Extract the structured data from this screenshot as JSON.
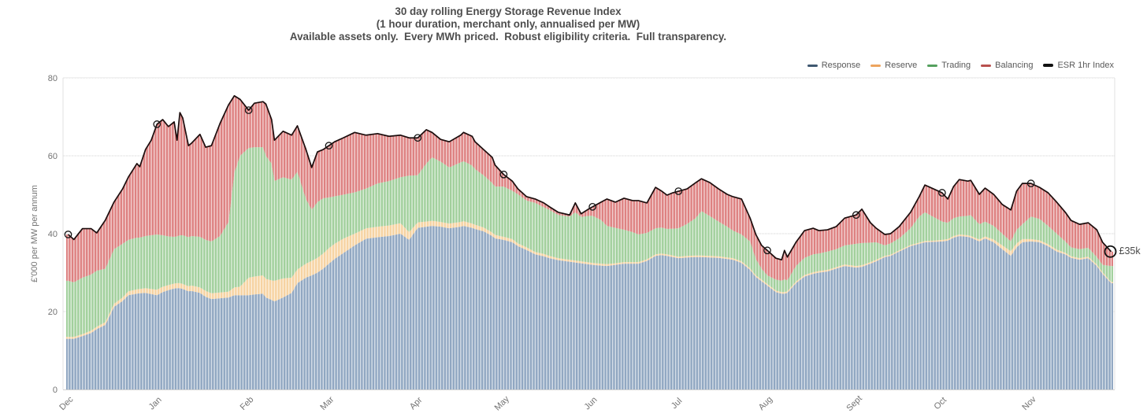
{
  "title": {
    "line1": "30 day rolling Energy Storage Revenue Index",
    "line2": "(1 hour duration, merchant only, annualised per MW)",
    "line3": "Available assets only.  Every MWh priced.  Robust eligibility criteria.  Full transparency."
  },
  "y_axis": {
    "label": "£'000 per MW per annum",
    "ticks": [
      0,
      20,
      40,
      60,
      80
    ],
    "max": 80
  },
  "x_axis": {
    "months": [
      {
        "label": "Dec",
        "day": 0
      },
      {
        "label": "Jan",
        "day": 31
      },
      {
        "label": "Feb",
        "day": 63
      },
      {
        "label": "Mar",
        "day": 91
      },
      {
        "label": "Apr",
        "day": 122
      },
      {
        "label": "May",
        "day": 152
      },
      {
        "label": "Jun",
        "day": 183
      },
      {
        "label": "Jul",
        "day": 213
      },
      {
        "label": "Aug",
        "day": 244
      },
      {
        "label": "Sept",
        "day": 275
      },
      {
        "label": "Oct",
        "day": 305
      },
      {
        "label": "Nov",
        "day": 336
      }
    ]
  },
  "legend": [
    {
      "label": "Response",
      "swatch": "#3f5870",
      "thick": false
    },
    {
      "label": "Reserve",
      "swatch": "#eda45e",
      "thick": false
    },
    {
      "label": "Trading",
      "swatch": "#55a05e",
      "thick": false
    },
    {
      "label": "Balancing",
      "swatch": "#b8504d",
      "thick": false
    },
    {
      "label": "ESR 1hr Index",
      "swatch": "#111111",
      "thick": true
    }
  ],
  "annotation": {
    "text": "£35k"
  },
  "colors": {
    "response_bar": "#8fa6c1",
    "reserve_bar": "#f6d2a0",
    "trading_bar": "#a0cf9b",
    "balancing_bar": "#dd7f7f",
    "esr_line": "#1c0d0d",
    "grid": "#e0e0e0",
    "axis_text": "#737373",
    "title_text": "#4d4d4d"
  },
  "chart_data": {
    "type": "bar",
    "stacked": true,
    "title": "30 day rolling Energy Storage Revenue Index",
    "xlabel": "",
    "ylabel": "£'000 per MW per annum",
    "ylim": [
      0,
      80
    ],
    "grid": true,
    "legend_position": "top-right",
    "x_unit": "days since 1 Dec",
    "x": [
      0,
      2,
      5,
      8,
      10,
      13,
      16,
      19,
      21,
      24,
      25,
      27,
      29,
      31,
      33,
      35,
      37,
      38,
      39,
      40,
      42,
      43,
      46,
      48,
      50,
      53,
      56,
      58,
      60,
      63,
      65,
      68,
      69,
      71,
      72,
      75,
      78,
      80,
      83,
      85,
      87,
      89,
      91,
      93,
      96,
      100,
      104,
      108,
      112,
      116,
      119,
      122,
      125,
      127,
      130,
      133,
      137,
      138,
      141,
      142,
      145,
      148,
      149,
      152,
      155,
      157,
      160,
      163,
      166,
      168,
      171,
      175,
      177,
      179,
      182,
      183,
      186,
      188,
      191,
      194,
      197,
      199,
      202,
      205,
      207,
      209,
      211,
      213,
      216,
      219,
      221,
      224,
      227,
      230,
      232,
      235,
      238,
      240,
      242,
      244,
      247,
      249,
      250,
      251,
      254,
      257,
      260,
      262,
      265,
      268,
      271,
      275,
      277,
      280,
      282,
      285,
      287,
      290,
      294,
      297,
      299,
      302,
      305,
      307,
      309,
      311,
      314,
      315,
      318,
      320,
      323,
      326,
      329,
      331,
      333,
      336,
      339,
      342,
      345,
      348,
      350,
      353,
      356,
      359,
      361,
      364
    ],
    "series": [
      {
        "name": "Response",
        "type": "bar",
        "color": "#8fa6c1",
        "values": [
          13.0,
          13.0,
          13.7,
          14.5,
          15.5,
          16.6,
          21.2,
          22.7,
          24.2,
          24.6,
          24.7,
          24.8,
          24.5,
          24.2,
          25.0,
          25.5,
          25.9,
          26.0,
          26.0,
          25.8,
          25.2,
          25.3,
          24.8,
          23.8,
          23.2,
          23.4,
          23.6,
          24.2,
          24.2,
          24.2,
          24.4,
          24.6,
          23.6,
          23.0,
          22.6,
          23.6,
          24.8,
          27.3,
          28.7,
          29.3,
          30.0,
          31.0,
          32.3,
          33.5,
          35.0,
          37.0,
          38.7,
          39.1,
          39.4,
          40.0,
          38.4,
          41.5,
          41.8,
          42.0,
          41.8,
          41.4,
          41.8,
          42.0,
          41.5,
          41.2,
          40.6,
          39.4,
          38.8,
          38.4,
          37.8,
          36.8,
          35.8,
          34.7,
          34.2,
          33.7,
          33.2,
          32.8,
          32.6,
          32.4,
          32.1,
          32.0,
          31.8,
          31.7,
          32.0,
          32.3,
          32.3,
          32.3,
          33.0,
          34.3,
          34.5,
          34.3,
          34.0,
          33.7,
          33.9,
          34.0,
          34.0,
          33.9,
          33.8,
          33.5,
          33.3,
          32.5,
          30.7,
          28.9,
          27.8,
          26.7,
          25.0,
          24.6,
          24.6,
          24.8,
          27.3,
          29.0,
          29.7,
          30.0,
          30.3,
          31.0,
          31.7,
          31.3,
          31.5,
          32.3,
          32.9,
          34.0,
          34.3,
          35.4,
          36.8,
          37.4,
          37.8,
          37.9,
          38.0,
          38.2,
          39.0,
          39.4,
          39.2,
          39.0,
          38.0,
          38.8,
          37.8,
          36.0,
          34.3,
          36.5,
          37.8,
          38.0,
          37.8,
          36.8,
          35.4,
          34.7,
          33.8,
          33.3,
          33.7,
          31.7,
          29.7,
          27.3
        ]
      },
      {
        "name": "Reserve",
        "type": "bar",
        "color": "#f6d2a0",
        "values": [
          0.5,
          0.5,
          0.5,
          0.6,
          0.6,
          0.7,
          0.8,
          0.9,
          1.0,
          1.1,
          1.1,
          1.2,
          1.3,
          1.4,
          1.4,
          1.3,
          1.3,
          1.3,
          1.3,
          1.3,
          1.3,
          1.4,
          1.4,
          1.5,
          1.5,
          1.5,
          1.5,
          2.0,
          2.2,
          4.5,
          4.6,
          4.7,
          4.8,
          5.0,
          5.3,
          4.9,
          3.9,
          3.5,
          3.6,
          3.7,
          3.8,
          3.9,
          4.0,
          3.9,
          3.7,
          3.0,
          2.7,
          2.7,
          2.7,
          2.7,
          2.0,
          1.4,
          1.3,
          1.3,
          1.2,
          1.2,
          1.2,
          1.2,
          1.1,
          1.1,
          1.0,
          0.9,
          0.9,
          0.8,
          0.8,
          0.7,
          0.7,
          0.6,
          0.6,
          0.6,
          0.5,
          0.5,
          0.5,
          0.5,
          0.5,
          0.5,
          0.5,
          0.5,
          0.4,
          0.4,
          0.4,
          0.4,
          0.4,
          0.4,
          0.4,
          0.4,
          0.4,
          0.4,
          0.4,
          0.4,
          0.4,
          0.4,
          0.4,
          0.4,
          0.4,
          0.4,
          0.4,
          0.4,
          0.4,
          0.4,
          0.4,
          0.4,
          0.4,
          0.4,
          0.4,
          0.4,
          0.4,
          0.4,
          0.4,
          0.4,
          0.4,
          0.4,
          0.4,
          0.4,
          0.4,
          0.3,
          0.3,
          0.3,
          0.3,
          0.3,
          0.3,
          0.3,
          0.4,
          0.4,
          0.4,
          0.4,
          0.4,
          0.4,
          0.5,
          0.5,
          0.7,
          1.0,
          1.2,
          1.0,
          0.8,
          0.6,
          0.5,
          0.5,
          0.5,
          0.4,
          0.4,
          0.4,
          0.4,
          0.4,
          0.4,
          0.3
        ]
      },
      {
        "name": "Trading",
        "type": "bar",
        "color": "#a0cf9b",
        "values": [
          14.4,
          14.0,
          14.5,
          14.4,
          14.4,
          13.7,
          14.0,
          13.8,
          13.2,
          13.3,
          13.2,
          13.4,
          13.8,
          14.2,
          13.2,
          12.5,
          12.0,
          12.0,
          12.3,
          12.5,
          12.6,
          12.7,
          13.0,
          13.1,
          13.3,
          14.5,
          17.9,
          29.4,
          33.6,
          33.3,
          33.2,
          32.9,
          31.6,
          30.0,
          25.6,
          26.0,
          25.2,
          25.1,
          16.6,
          13.1,
          14.3,
          14.2,
          13.0,
          12.2,
          11.3,
          10.6,
          10.2,
          11.1,
          11.4,
          11.8,
          14.5,
          12.1,
          14.9,
          16.3,
          15.5,
          14.4,
          15.3,
          15.4,
          14.9,
          14.3,
          13.4,
          12.7,
          12.4,
          12.9,
          12.4,
          12.6,
          12.0,
          12.6,
          12.0,
          11.8,
          11.1,
          11.1,
          12.4,
          11.4,
          12.0,
          12.1,
          11.2,
          9.8,
          9.1,
          8.3,
          7.7,
          7.1,
          6.8,
          6.7,
          6.7,
          6.5,
          6.9,
          7.3,
          8.2,
          9.6,
          11.4,
          10.2,
          8.9,
          7.9,
          7.1,
          6.9,
          6.9,
          4.2,
          2.8,
          2.2,
          2.8,
          2.9,
          3.3,
          2.8,
          4.0,
          4.4,
          4.6,
          4.5,
          4.7,
          4.6,
          4.9,
          5.7,
          5.7,
          5.0,
          4.5,
          2.7,
          2.9,
          3.1,
          4.3,
          6.7,
          7.4,
          6.1,
          4.7,
          4.2,
          4.6,
          4.6,
          5.0,
          5.4,
          3.9,
          3.8,
          3.5,
          3.0,
          2.5,
          3.5,
          3.8,
          5.8,
          5.5,
          4.7,
          4.1,
          2.9,
          2.3,
          2.3,
          2.3,
          1.9,
          1.9,
          4.1
        ]
      },
      {
        "name": "Balancing",
        "type": "bar",
        "color": "#dd7f7f",
        "values": [
          11.9,
          11.0,
          12.6,
          11.8,
          9.7,
          12.5,
          12.1,
          14.1,
          16.1,
          19.0,
          18.2,
          22.2,
          24.4,
          28.3,
          29.7,
          28.2,
          29.5,
          24.7,
          31.5,
          30.1,
          23.5,
          23.8,
          26.3,
          23.8,
          24.6,
          28.9,
          30.1,
          19.8,
          14.5,
          9.7,
          11.3,
          11.7,
          13.3,
          11.3,
          10.5,
          11.8,
          11.4,
          11.8,
          12.7,
          10.9,
          12.9,
          12.5,
          13.3,
          14.0,
          14.6,
          15.4,
          13.7,
          12.8,
          11.5,
          10.8,
          9.7,
          9.6,
          8.7,
          6.4,
          5.7,
          6.6,
          7.0,
          7.4,
          7.5,
          7.0,
          6.6,
          6.6,
          5.5,
          3.1,
          2.5,
          1.4,
          1.0,
          1.0,
          1.1,
          0.8,
          0.7,
          0.4,
          2.4,
          0.8,
          1.9,
          2.3,
          4.6,
          6.9,
          6.6,
          8.1,
          8.1,
          8.7,
          7.7,
          10.5,
          9.4,
          8.7,
          9.2,
          9.5,
          9.0,
          9.1,
          8.3,
          8.6,
          8.4,
          8.3,
          8.7,
          9.1,
          6.0,
          6.3,
          6.0,
          6.4,
          5.5,
          5.4,
          7.4,
          6.0,
          6.1,
          7.0,
          6.7,
          5.9,
          5.6,
          5.8,
          7.0,
          7.4,
          8.7,
          5.1,
          3.6,
          2.8,
          2.5,
          3.0,
          4.1,
          5.1,
          7.0,
          7.2,
          7.4,
          6.1,
          8.1,
          9.5,
          8.9,
          8.9,
          7.7,
          8.6,
          8.1,
          7.5,
          8.1,
          9.9,
          10.5,
          8.5,
          8.1,
          8.5,
          8.1,
          7.5,
          6.9,
          6.4,
          6.4,
          7.0,
          5.8,
          3.7
        ]
      },
      {
        "name": "ESR 1hr Index",
        "type": "line",
        "color": "#1c0d0d",
        "values": [
          39.8,
          38.5,
          41.3,
          41.3,
          40.2,
          43.5,
          48.1,
          51.5,
          54.5,
          58.0,
          57.2,
          61.6,
          64.0,
          68.1,
          69.3,
          67.5,
          68.7,
          64.0,
          71.1,
          69.7,
          62.6,
          63.2,
          65.5,
          62.2,
          62.6,
          68.3,
          73.1,
          75.4,
          74.5,
          71.7,
          73.5,
          73.9,
          73.3,
          69.3,
          64.0,
          66.3,
          65.3,
          67.7,
          61.6,
          57.0,
          61.0,
          61.6,
          62.6,
          63.6,
          64.6,
          66.0,
          65.3,
          65.7,
          65.0,
          65.3,
          64.6,
          64.6,
          66.7,
          66.0,
          64.2,
          63.6,
          65.3,
          66.0,
          65.0,
          63.6,
          61.6,
          59.6,
          57.6,
          55.2,
          53.5,
          51.5,
          49.5,
          48.9,
          47.9,
          46.9,
          45.5,
          44.8,
          47.9,
          45.1,
          46.5,
          46.9,
          48.1,
          48.9,
          48.1,
          49.1,
          48.5,
          48.5,
          47.9,
          51.9,
          51.0,
          49.9,
          50.5,
          50.9,
          51.5,
          53.1,
          54.1,
          53.1,
          51.5,
          50.1,
          49.5,
          48.9,
          44.0,
          39.8,
          37.0,
          35.7,
          33.7,
          33.3,
          35.7,
          34.0,
          37.8,
          40.8,
          41.4,
          40.8,
          41.0,
          41.8,
          44.0,
          44.8,
          46.3,
          42.8,
          41.4,
          39.8,
          40.0,
          41.8,
          45.5,
          49.5,
          52.5,
          51.5,
          50.5,
          48.9,
          52.1,
          53.9,
          53.5,
          53.7,
          50.1,
          51.7,
          50.1,
          47.5,
          46.1,
          50.9,
          52.9,
          52.9,
          51.9,
          50.5,
          48.1,
          45.5,
          43.4,
          42.4,
          42.8,
          41.0,
          37.8,
          35.4
        ]
      }
    ],
    "markers": {
      "month_days": [
        0,
        31,
        63,
        91,
        122,
        152,
        183,
        213,
        244,
        275,
        305,
        336
      ],
      "end_day": 364,
      "end_label": "£35k"
    }
  }
}
